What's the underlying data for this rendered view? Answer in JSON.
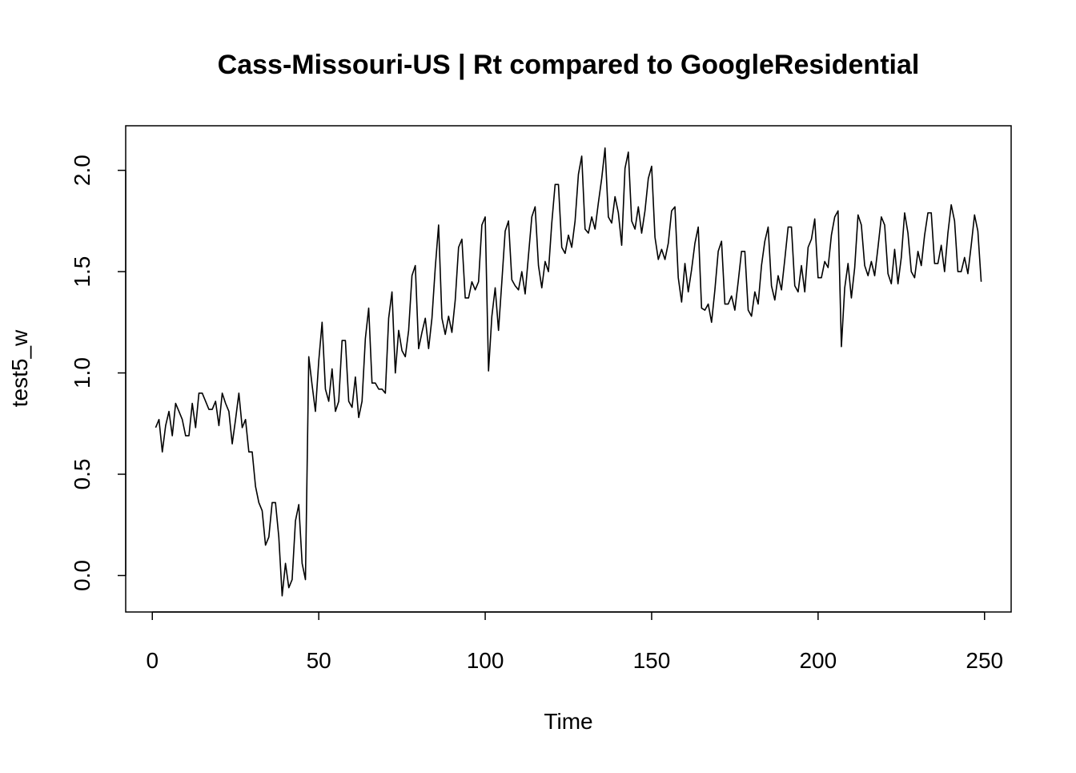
{
  "chart_data": {
    "type": "line",
    "title": "Cass-Missouri-US | Rt compared to GoogleResidential",
    "xlabel": "Time",
    "ylabel": "test5_w",
    "xlim": [
      -8,
      258
    ],
    "ylim": [
      -0.18,
      2.22
    ],
    "x_ticks": [
      0,
      50,
      100,
      150,
      200,
      250
    ],
    "y_ticks": [
      0.0,
      0.5,
      1.0,
      1.5,
      2.0
    ],
    "x_tick_labels": [
      "0",
      "50",
      "100",
      "150",
      "200",
      "250"
    ],
    "y_tick_labels": [
      "0.0",
      "0.5",
      "1.0",
      "1.5",
      "2.0"
    ],
    "grid": false,
    "legend": "none",
    "line_color": "#000000",
    "series": [
      {
        "x_start": 1,
        "values": [
          0.73,
          0.77,
          0.61,
          0.74,
          0.81,
          0.69,
          0.85,
          0.81,
          0.77,
          0.69,
          0.69,
          0.85,
          0.73,
          0.9,
          0.9,
          0.86,
          0.82,
          0.82,
          0.86,
          0.74,
          0.9,
          0.85,
          0.81,
          0.65,
          0.77,
          0.9,
          0.73,
          0.77,
          0.61,
          0.61,
          0.44,
          0.36,
          0.32,
          0.15,
          0.19,
          0.36,
          0.36,
          0.19,
          -0.1,
          0.06,
          -0.06,
          -0.02,
          0.27,
          0.35,
          0.06,
          -0.02,
          1.08,
          0.94,
          0.81,
          1.06,
          1.25,
          0.92,
          0.86,
          1.02,
          0.81,
          0.86,
          1.16,
          1.16,
          0.86,
          0.83,
          0.98,
          0.78,
          0.86,
          1.17,
          1.32,
          0.95,
          0.95,
          0.92,
          0.92,
          0.9,
          1.27,
          1.4,
          1.0,
          1.21,
          1.11,
          1.08,
          1.21,
          1.48,
          1.53,
          1.12,
          1.2,
          1.27,
          1.12,
          1.27,
          1.52,
          1.73,
          1.27,
          1.19,
          1.28,
          1.2,
          1.36,
          1.62,
          1.66,
          1.37,
          1.37,
          1.45,
          1.41,
          1.45,
          1.73,
          1.77,
          1.01,
          1.28,
          1.42,
          1.21,
          1.45,
          1.7,
          1.75,
          1.46,
          1.43,
          1.41,
          1.5,
          1.39,
          1.58,
          1.77,
          1.82,
          1.53,
          1.42,
          1.55,
          1.5,
          1.74,
          1.93,
          1.93,
          1.62,
          1.59,
          1.68,
          1.62,
          1.75,
          1.98,
          2.07,
          1.71,
          1.69,
          1.77,
          1.71,
          1.84,
          1.96,
          2.11,
          1.77,
          1.74,
          1.87,
          1.79,
          1.63,
          2.01,
          2.09,
          1.75,
          1.71,
          1.82,
          1.69,
          1.8,
          1.96,
          2.02,
          1.67,
          1.56,
          1.61,
          1.56,
          1.64,
          1.8,
          1.82,
          1.47,
          1.35,
          1.54,
          1.4,
          1.51,
          1.64,
          1.72,
          1.32,
          1.31,
          1.34,
          1.25,
          1.41,
          1.6,
          1.65,
          1.34,
          1.34,
          1.38,
          1.31,
          1.45,
          1.6,
          1.6,
          1.31,
          1.28,
          1.4,
          1.34,
          1.53,
          1.65,
          1.72,
          1.43,
          1.36,
          1.48,
          1.41,
          1.56,
          1.72,
          1.72,
          1.43,
          1.4,
          1.53,
          1.4,
          1.62,
          1.66,
          1.76,
          1.47,
          1.47,
          1.55,
          1.52,
          1.68,
          1.77,
          1.8,
          1.13,
          1.42,
          1.54,
          1.37,
          1.52,
          1.78,
          1.73,
          1.53,
          1.48,
          1.55,
          1.48,
          1.62,
          1.77,
          1.73,
          1.49,
          1.44,
          1.61,
          1.44,
          1.57,
          1.79,
          1.69,
          1.5,
          1.47,
          1.6,
          1.53,
          1.68,
          1.79,
          1.79,
          1.54,
          1.54,
          1.63,
          1.5,
          1.69,
          1.83,
          1.75,
          1.5,
          1.5,
          1.57,
          1.49,
          1.63,
          1.78,
          1.7,
          1.45
        ]
      }
    ]
  }
}
